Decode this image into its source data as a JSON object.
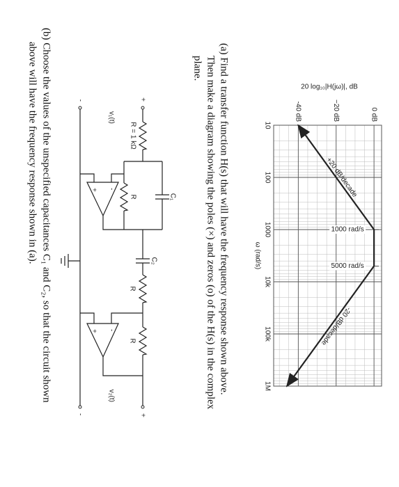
{
  "chart_data": {
    "type": "line",
    "y_label": "20 log₁₀|H(jω)|, dB",
    "x_label": "ω (rad/s)",
    "x": [
      10,
      1000,
      5000,
      1000000
    ],
    "values": [
      -40,
      0,
      0,
      -46
    ],
    "color": "#222222",
    "log_x": true,
    "grid": true,
    "xlim": [
      10,
      1000000
    ],
    "xticks": [
      10,
      100,
      1000,
      {
        "value": 10000,
        "label": "10k"
      },
      {
        "value": 100000,
        "label": "100k"
      },
      {
        "value": 1000000,
        "label": "1M"
      }
    ],
    "ylim": [
      -53,
      4
    ],
    "yticks": [
      {
        "value": 0,
        "label": "0 dB"
      },
      {
        "value": -20,
        "label": "−20 dB"
      },
      {
        "value": -40,
        "label": "-40 dB"
      }
    ],
    "annotations": [
      "+20 dB/decade",
      "1000 rad/s",
      "5000 rad/s",
      "-20 dB/decade"
    ]
  },
  "problem_a": [
    "(a) Find a transfer function H(s) that will have the frequency response shown above.",
    "Then make a diagram showing the poles (×) and zeros (o) of the H(s) in the complex",
    "plane."
  ],
  "circuit": {
    "labels": [
      "+",
      "-",
      "v₁(t)",
      "R = 1 kΩ",
      "C₁",
      "R",
      "+",
      "-",
      "C₂",
      "R",
      "R",
      "+",
      "-",
      "+",
      "-",
      "v₂(t)"
    ]
  },
  "problem_b": [
    "(b) Choose the values of the unspecified capacitances C₁ and C₂, so that the circuit shown",
    "above will have the frequency response shown in (a)."
  ]
}
